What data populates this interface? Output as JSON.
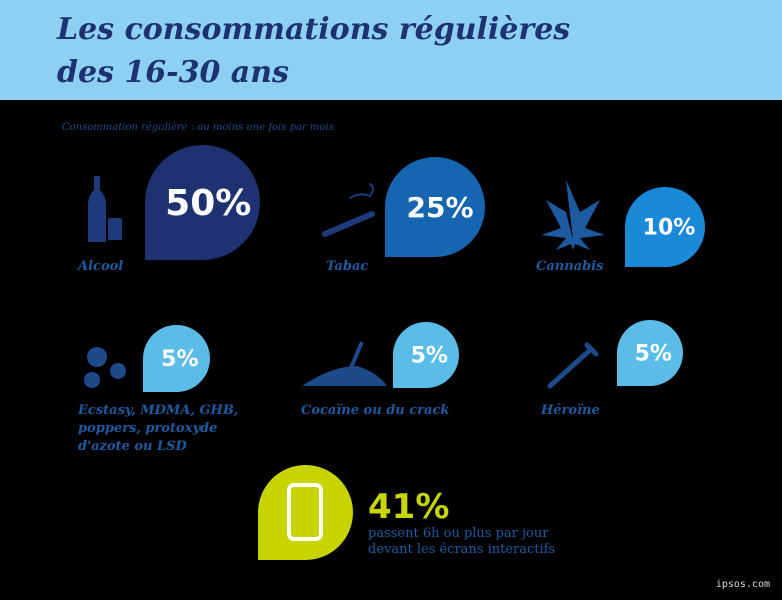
{
  "header": {
    "title_line1": "Les consommations régulières",
    "title_line2": "des 16-30 ans"
  },
  "note": "Consommation régulière : au moins une fois par mois",
  "items": [
    {
      "label": "Alcool",
      "value": "50%"
    },
    {
      "label": "Tabac",
      "value": "25%"
    },
    {
      "label": "Cannabis",
      "value": "10%"
    },
    {
      "label_lines": [
        "Ecstasy, MDMA, GHB,",
        "poppers, protoxyde",
        "d'azote ou LSD"
      ],
      "value": "5%"
    },
    {
      "label": "Cocaïne ou du crack",
      "value": "5%"
    },
    {
      "label": "Héroïne",
      "value": "5%"
    }
  ],
  "screens": {
    "value": "41%",
    "line1": "passent 6h ou plus par jour",
    "line2": "devant les écrans interactifs"
  },
  "footer": "ipsos.com"
}
